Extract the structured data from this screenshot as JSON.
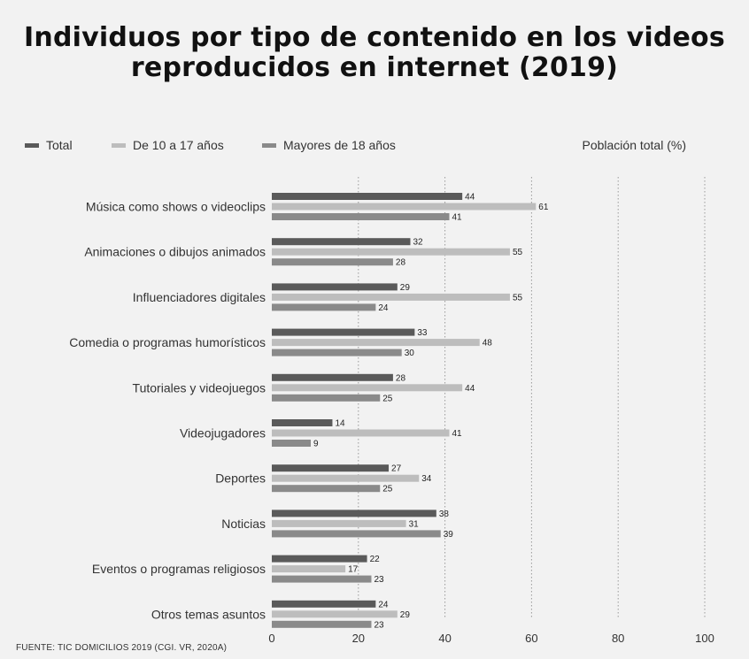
{
  "chart_data": {
    "type": "bar",
    "orientation": "horizontal",
    "title_lines": [
      "Individuos por tipo de contenido en los videos",
      "reproducidos en internet (2019)"
    ],
    "axis_title": "Población total (%)",
    "source": "FUENTE: TIC DOMICILIOS 2019 (CGI. VR, 2020A)",
    "xlim": [
      0,
      100
    ],
    "x_ticks": [
      0,
      20,
      40,
      60,
      80,
      100
    ],
    "grid": true,
    "legend_position": "top-left",
    "categories": [
      "Música como shows o videoclips",
      "Animaciones o dibujos animados",
      "Influenciadores digitales",
      "Comedia o programas humorísticos",
      "Tutoriales y videojuegos",
      "Videojugadores",
      "Deportes",
      "Noticias",
      "Eventos o programas religiosos",
      "Otros temas asuntos"
    ],
    "series": [
      {
        "name": "Total",
        "color": "#5a5a5a",
        "values": [
          44,
          32,
          29,
          33,
          28,
          14,
          27,
          38,
          22,
          24
        ]
      },
      {
        "name": "De 10 a 17 años",
        "color": "#bdbdbd",
        "values": [
          61,
          55,
          55,
          48,
          44,
          41,
          34,
          31,
          17,
          29
        ]
      },
      {
        "name": "Mayores de 18 años",
        "color": "#8a8a8a",
        "values": [
          41,
          28,
          24,
          30,
          25,
          9,
          25,
          39,
          23,
          23
        ]
      }
    ]
  }
}
